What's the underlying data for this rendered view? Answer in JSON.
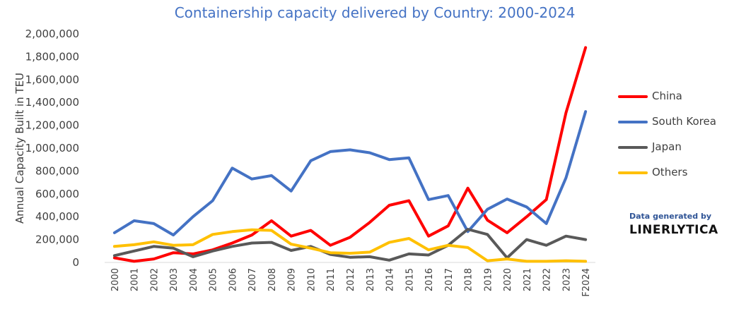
{
  "chart_data": {
    "type": "line",
    "title": "Containership capacity delivered by Country: 2000-2024",
    "xlabel": "",
    "ylabel": "Annual Capacity Built in TEU",
    "ylim": [
      0,
      2000000
    ],
    "yticks": [
      "0",
      "200,000",
      "400,000",
      "600,000",
      "800,000",
      "1,000,000",
      "1,200,000",
      "1,400,000",
      "1,600,000",
      "1,800,000",
      "2,000,000"
    ],
    "categories": [
      "2000",
      "2001",
      "2002",
      "2003",
      "2004",
      "2005",
      "2006",
      "2007",
      "2008",
      "2009",
      "2010",
      "2011",
      "2012",
      "2013",
      "2014",
      "2015",
      "2016",
      "2017",
      "2018",
      "2019",
      "2020",
      "2021",
      "2022",
      "2023",
      "F2024"
    ],
    "grid": false,
    "legend_position": "right",
    "series": [
      {
        "name": "China",
        "color": "#FF0000",
        "values": [
          40000,
          10000,
          30000,
          85000,
          75000,
          110000,
          170000,
          240000,
          365000,
          230000,
          280000,
          150000,
          220000,
          350000,
          500000,
          540000,
          230000,
          320000,
          650000,
          370000,
          260000,
          400000,
          550000,
          1310000,
          1880000
        ]
      },
      {
        "name": "South Korea",
        "color": "#4472C4",
        "values": [
          260000,
          365000,
          340000,
          240000,
          400000,
          540000,
          825000,
          730000,
          760000,
          625000,
          890000,
          970000,
          985000,
          960000,
          900000,
          915000,
          550000,
          585000,
          270000,
          465000,
          555000,
          485000,
          340000,
          740000,
          1320000
        ]
      },
      {
        "name": "Japan",
        "color": "#595959",
        "values": [
          60000,
          100000,
          140000,
          125000,
          50000,
          100000,
          140000,
          170000,
          175000,
          105000,
          140000,
          70000,
          45000,
          50000,
          20000,
          75000,
          65000,
          150000,
          290000,
          245000,
          40000,
          200000,
          150000,
          230000,
          200000
        ]
      },
      {
        "name": "Others",
        "color": "#FFC000",
        "values": [
          140000,
          155000,
          180000,
          150000,
          155000,
          245000,
          270000,
          285000,
          280000,
          160000,
          125000,
          85000,
          80000,
          90000,
          175000,
          210000,
          110000,
          150000,
          130000,
          15000,
          30000,
          10000,
          10000,
          15000,
          10000
        ]
      }
    ]
  },
  "watermark": {
    "line1": "Data generated by",
    "line2": "LINERLYTICA"
  }
}
